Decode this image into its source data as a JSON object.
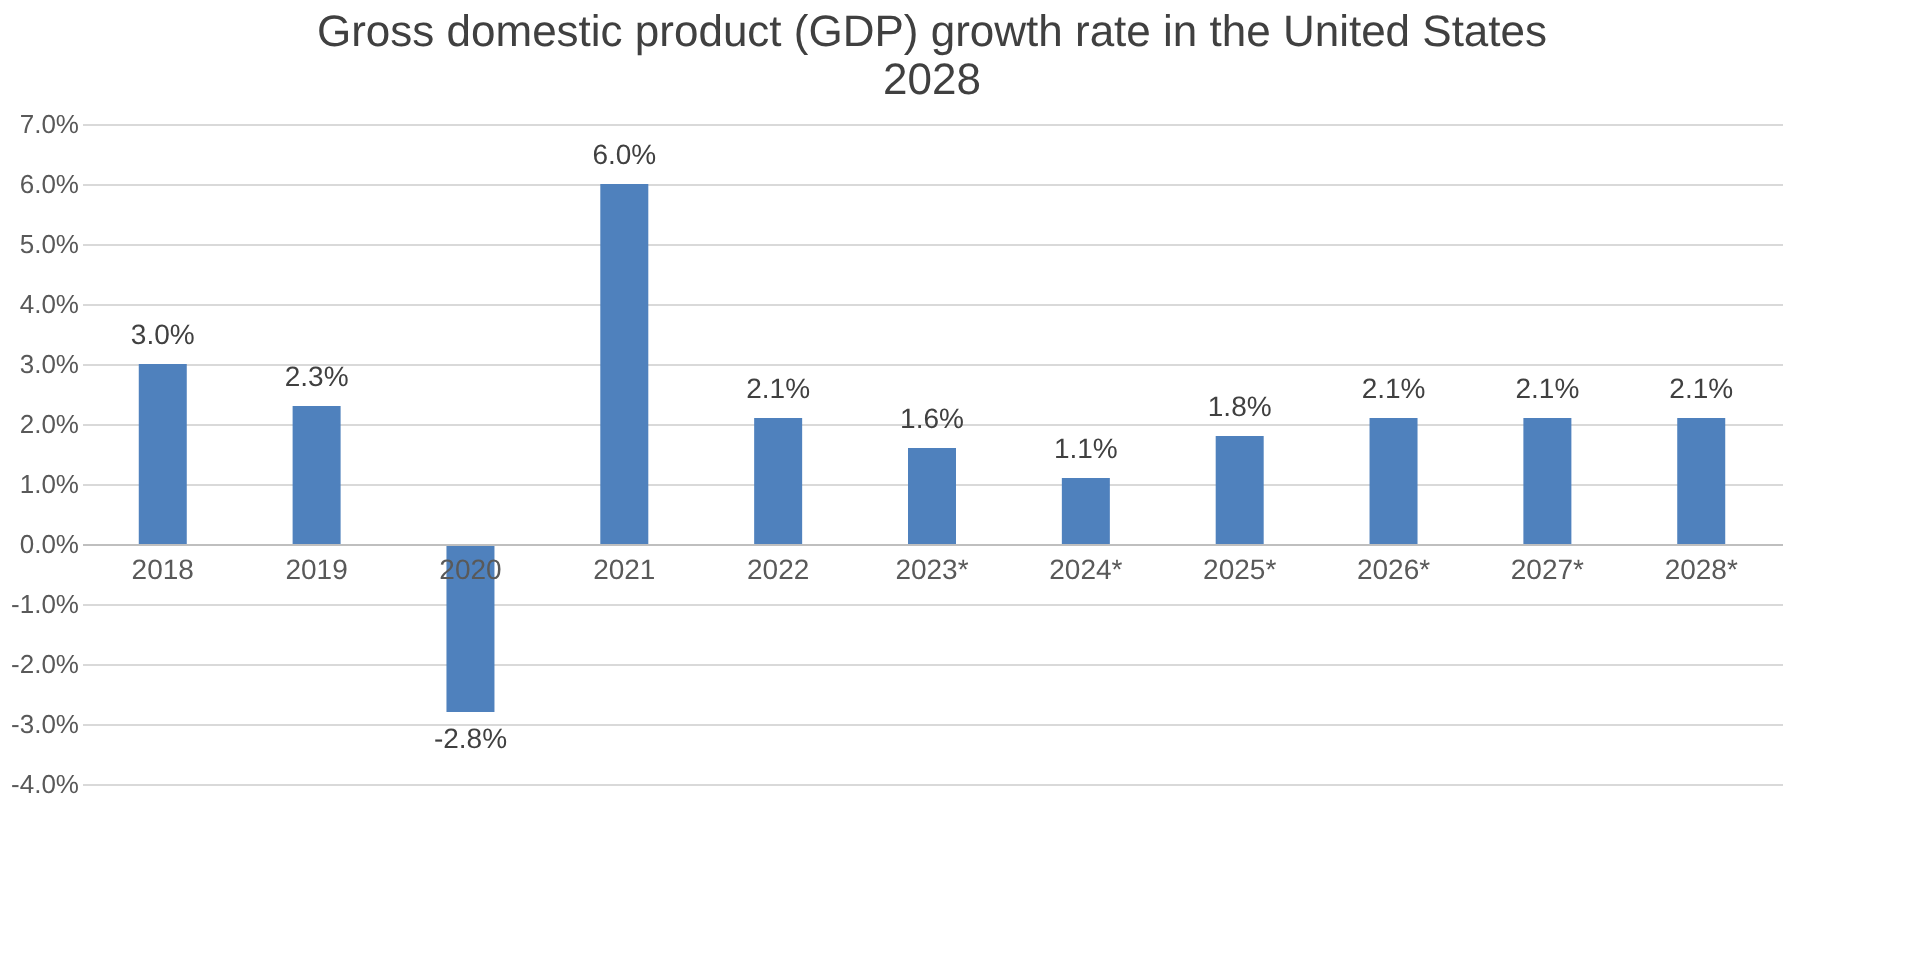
{
  "chart_data": {
    "type": "bar",
    "title": "Gross domestic product (GDP) growth rate in the United States\n2028",
    "categories": [
      "2018",
      "2019",
      "2020",
      "2021",
      "2022",
      "2023*",
      "2024*",
      "2025*",
      "2026*",
      "2027*",
      "2028*"
    ],
    "values": [
      3.0,
      2.3,
      -2.8,
      6.0,
      2.1,
      1.6,
      1.1,
      1.8,
      2.1,
      2.1,
      2.1
    ],
    "value_labels": [
      "3.0%",
      "2.3%",
      "-2.8%",
      "6.0%",
      "2.1%",
      "1.6%",
      "1.1%",
      "1.8%",
      "2.1%",
      "2.1%",
      "2.1%"
    ],
    "color": "#4f81bd",
    "ylim": [
      -4,
      7
    ],
    "yticks": [
      {
        "value": -4,
        "label": "-4.0%"
      },
      {
        "value": -3,
        "label": "-3.0%"
      },
      {
        "value": -2,
        "label": "-2.0%"
      },
      {
        "value": -1,
        "label": "-1.0%"
      },
      {
        "value": 0,
        "label": "0.0%"
      },
      {
        "value": 1,
        "label": "1.0%"
      },
      {
        "value": 2,
        "label": "2.0%"
      },
      {
        "value": 3,
        "label": "3.0%"
      },
      {
        "value": 4,
        "label": "4.0%"
      },
      {
        "value": 5,
        "label": "5.0%"
      },
      {
        "value": 6,
        "label": "6.0%"
      },
      {
        "value": 7,
        "label": "7.0%"
      }
    ],
    "grid": "y"
  }
}
